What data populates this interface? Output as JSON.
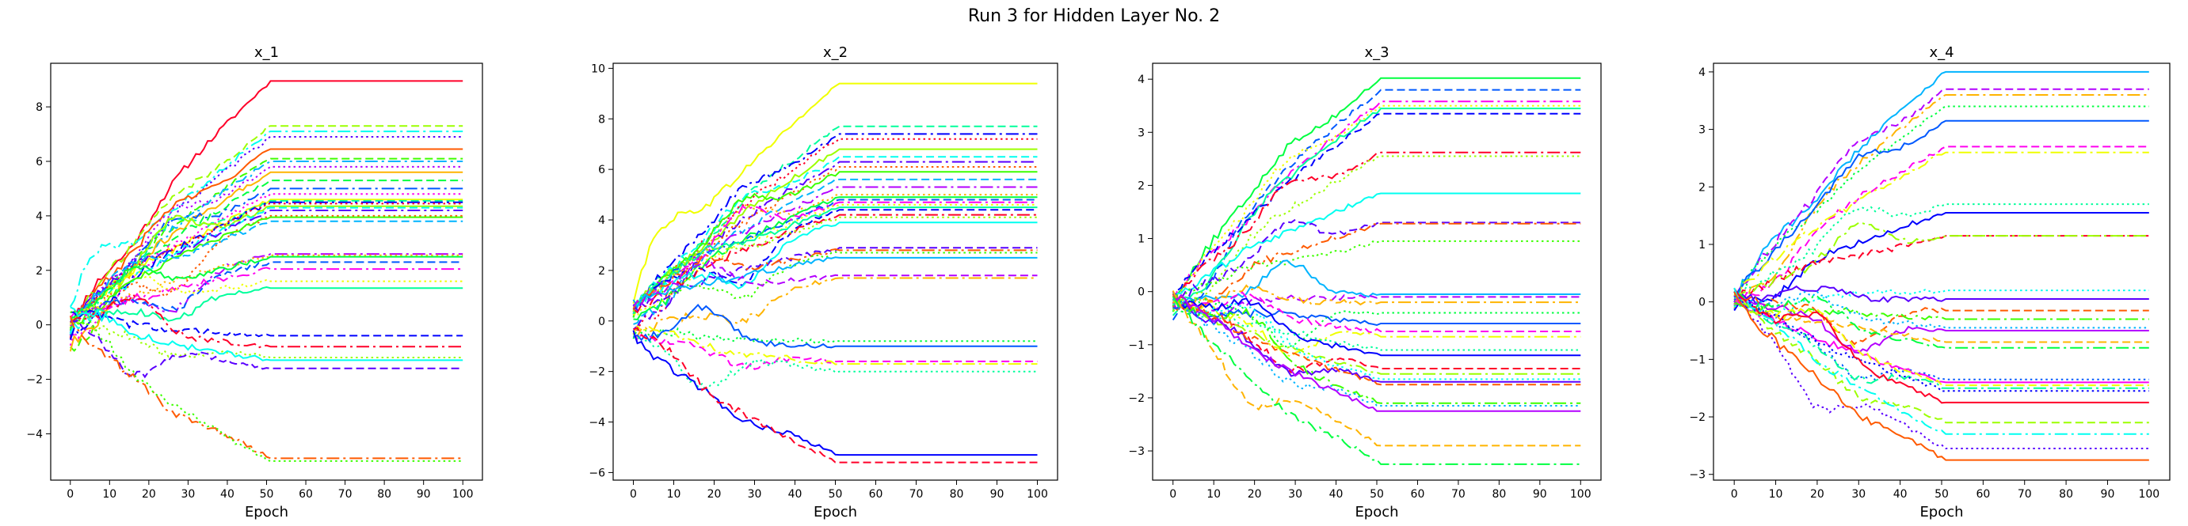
{
  "figure": {
    "suptitle": "Run 3 for Hidden Layer No. 2"
  },
  "colors": [
    "#ff0029",
    "#ff5a00",
    "#ffb400",
    "#f0ff00",
    "#9cff00",
    "#3dff00",
    "#00ff40",
    "#00ff9c",
    "#00fff0",
    "#00b4ff",
    "#0059ff",
    "#0000ff",
    "#5a00ff",
    "#b400ff",
    "#ff00f0"
  ],
  "chart_data": [
    {
      "type": "line",
      "title": "x_1",
      "xlabel": "Epoch",
      "ylabel": "",
      "xlim": [
        -5,
        105
      ],
      "ylim": [
        -5.7,
        9.6
      ],
      "xticks": [
        0,
        10,
        20,
        30,
        40,
        50,
        60,
        70,
        80,
        90,
        100
      ],
      "yticks": [
        -4,
        -2,
        0,
        2,
        4,
        6,
        8
      ],
      "plateau_epoch": 51,
      "final_values": [
        8.95,
        7.3,
        7.1,
        6.9,
        6.45,
        6.1,
        6.0,
        5.8,
        5.6,
        5.3,
        5.0,
        4.8,
        4.6,
        4.55,
        4.5,
        4.45,
        4.35,
        4.3,
        4.2,
        4.0,
        3.95,
        3.8,
        2.6,
        2.55,
        2.5,
        2.3,
        2.05,
        1.6,
        1.35,
        -0.4,
        -0.8,
        -1.2,
        -1.3,
        -1.6,
        -4.9,
        -5.0
      ]
    },
    {
      "type": "line",
      "title": "x_2",
      "xlabel": "Epoch",
      "ylabel": "",
      "xlim": [
        -5,
        105
      ],
      "ylim": [
        -6.3,
        10.2
      ],
      "xticks": [
        0,
        10,
        20,
        30,
        40,
        50,
        60,
        70,
        80,
        90,
        100
      ],
      "yticks": [
        -6,
        -4,
        -2,
        0,
        2,
        4,
        6,
        8,
        10
      ],
      "plateau_epoch": 51,
      "final_values": [
        9.4,
        7.7,
        7.4,
        7.2,
        6.8,
        6.5,
        6.3,
        6.1,
        5.9,
        5.6,
        5.3,
        5.0,
        4.9,
        4.8,
        4.7,
        4.6,
        4.5,
        4.4,
        4.2,
        4.1,
        3.9,
        2.9,
        2.8,
        2.7,
        2.5,
        1.8,
        1.7,
        -0.8,
        -1.0,
        -1.6,
        -1.7,
        -2.0,
        -5.3,
        -5.6
      ]
    },
    {
      "type": "line",
      "title": "x_3",
      "xlabel": "Epoch",
      "ylabel": "",
      "xlim": [
        -5,
        105
      ],
      "ylim": [
        -3.55,
        4.3
      ],
      "xticks": [
        0,
        10,
        20,
        30,
        40,
        50,
        60,
        70,
        80,
        90,
        100
      ],
      "yticks": [
        -3,
        -2,
        -1,
        0,
        1,
        2,
        3,
        4
      ],
      "plateau_epoch": 51,
      "final_values": [
        4.02,
        3.8,
        3.58,
        3.5,
        3.45,
        3.35,
        2.62,
        2.55,
        1.85,
        1.3,
        1.28,
        0.95,
        -0.05,
        -0.1,
        -0.2,
        -0.4,
        -0.6,
        -0.75,
        -0.85,
        -1.1,
        -1.2,
        -1.45,
        -1.55,
        -1.65,
        -1.7,
        -1.75,
        -2.1,
        -2.15,
        -2.25,
        -2.9,
        -3.25
      ]
    },
    {
      "type": "line",
      "title": "x_4",
      "xlabel": "Epoch",
      "ylabel": "",
      "xlim": [
        -5,
        105
      ],
      "ylim": [
        -3.1,
        4.15
      ],
      "xticks": [
        0,
        10,
        20,
        30,
        40,
        50,
        60,
        70,
        80,
        90,
        100
      ],
      "yticks": [
        -3,
        -2,
        -1,
        0,
        1,
        2,
        3,
        4
      ],
      "plateau_epoch": 51,
      "final_values": [
        4.0,
        3.7,
        3.6,
        3.4,
        3.15,
        2.7,
        2.6,
        1.7,
        1.55,
        1.15,
        1.15,
        0.2,
        0.05,
        -0.15,
        -0.3,
        -0.45,
        -0.5,
        -0.7,
        -0.8,
        -1.35,
        -1.4,
        -1.45,
        -1.5,
        -1.55,
        -1.75,
        -2.1,
        -2.3,
        -2.55,
        -2.75
      ]
    }
  ]
}
